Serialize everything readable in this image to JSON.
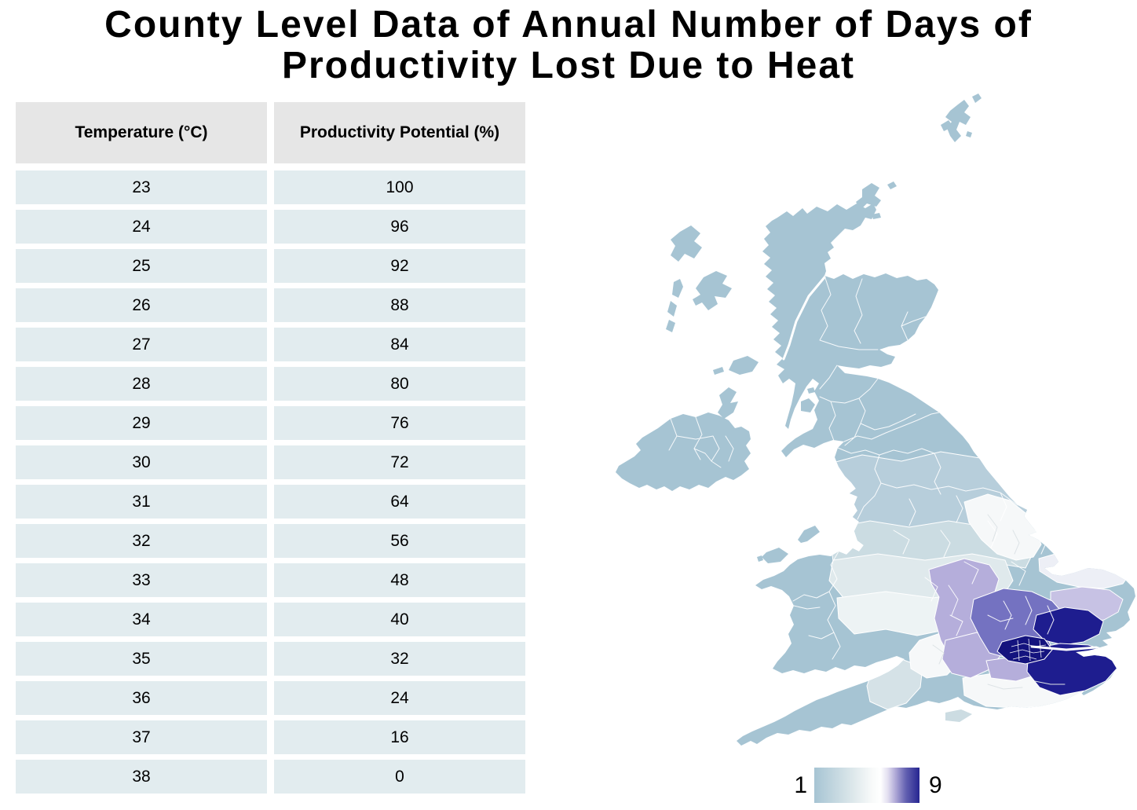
{
  "title": {
    "line1": "County Level Data of Annual Number of Days of",
    "line2": "Productivity Lost Due to Heat"
  },
  "table": {
    "headers": [
      "Temperature (°C)",
      "Productivity Potential (%)"
    ],
    "rows": [
      [
        "23",
        "100"
      ],
      [
        "24",
        "96"
      ],
      [
        "25",
        "92"
      ],
      [
        "26",
        "88"
      ],
      [
        "27",
        "84"
      ],
      [
        "28",
        "80"
      ],
      [
        "29",
        "76"
      ],
      [
        "30",
        "72"
      ],
      [
        "31",
        "64"
      ],
      [
        "32",
        "56"
      ],
      [
        "33",
        "48"
      ],
      [
        "34",
        "40"
      ],
      [
        "35",
        "32"
      ],
      [
        "36",
        "24"
      ],
      [
        "37",
        "16"
      ],
      [
        "38",
        "0"
      ]
    ]
  },
  "map": {
    "legend": {
      "min_label": "1",
      "max_label": "9",
      "gradient": [
        [
          0,
          "#a6c4d3"
        ],
        [
          38,
          "#dfe9ec"
        ],
        [
          55,
          "#f8fafa"
        ],
        [
          63,
          "#ffffff"
        ],
        [
          70,
          "#e2def0"
        ],
        [
          78,
          "#aaa3d4"
        ],
        [
          87,
          "#6361b1"
        ],
        [
          100,
          "#262591"
        ]
      ]
    },
    "palette": {
      "base": "#a6c4d3",
      "band1": "#b7cedb",
      "band2": "#cbdce2",
      "band3": "#dfe9ec",
      "band4": "#edf3f4",
      "white1": "#f6f8f9",
      "norfolk": "#edeff6",
      "suffolk": "#c7c2e4",
      "lightpurple": "#b5aedb",
      "mediumpurple": "#7472c1",
      "navy": "#1e1d8f",
      "darknavy": "#14137e",
      "iow": "#ccdce2",
      "somerset": "#d5e2e7"
    }
  },
  "chart_data": [
    {
      "type": "table",
      "title": "County Level Data of Annual Number of Days of Productivity Lost Due to Heat",
      "columns": [
        "Temperature (°C)",
        "Productivity Potential (%)"
      ],
      "rows": [
        [
          23,
          100
        ],
        [
          24,
          96
        ],
        [
          25,
          92
        ],
        [
          26,
          88
        ],
        [
          27,
          84
        ],
        [
          28,
          80
        ],
        [
          29,
          76
        ],
        [
          30,
          72
        ],
        [
          31,
          64
        ],
        [
          32,
          56
        ],
        [
          33,
          48
        ],
        [
          34,
          40
        ],
        [
          35,
          32
        ],
        [
          36,
          24
        ],
        [
          37,
          16
        ],
        [
          38,
          0
        ]
      ]
    },
    {
      "type": "heatmap",
      "subtype": "choropleth-map",
      "region": "United Kingdom counties",
      "value_label": "Annual number of days of productivity lost due to heat",
      "scale": {
        "min": 1,
        "max": 9,
        "min_color": "#a6c4d3",
        "mid_color": "#fbfcfd",
        "max_color": "#262591"
      },
      "legend_position": "bottom-center-of-map",
      "pattern": "Lowest values (~1, blue-grey) across Scotland, Northern Ireland, Wales, northern and south-west England; near-white mid values across the Midlands and Lincolnshire; light purple in Oxfordshire/Northamptonshire, Suffolk, Hampshire and Surrey; medium purple in the Home Counties; darkest navy (~8-9) in Greater London boroughs, Essex and Kent"
    }
  ]
}
